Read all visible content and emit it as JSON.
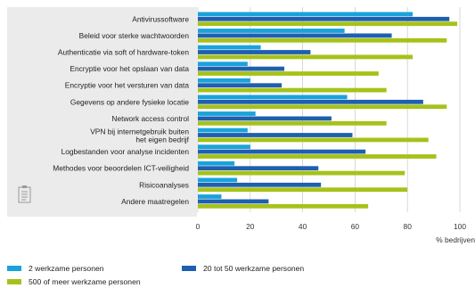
{
  "chart_data": {
    "type": "bar",
    "orientation": "horizontal",
    "categories": [
      "Antivirussoftware",
      "Beleid voor sterke wachtwoorden",
      "Authenticatie via soft of hardware-token",
      "Encryptie voor het opslaan van data",
      "Encryptie voor het versturen van data",
      "Gegevens op andere fysieke locatie",
      "Network access control",
      "VPN bij internetgebruik buiten het eigen bedrijf",
      "Logbestanden voor analyse incidenten",
      "Methodes voor beoordelen ICT-veiligheid",
      "Risicoanalyses",
      "Andere maatregelen"
    ],
    "series": [
      {
        "name": "2 werkzame personen",
        "color": "#1aa3d9",
        "values": [
          82,
          56,
          24,
          19,
          20,
          57,
          22,
          19,
          20,
          14,
          15,
          9
        ]
      },
      {
        "name": "20 tot 50 werkzame personen",
        "color": "#1f5fb0",
        "values": [
          96,
          74,
          43,
          33,
          32,
          86,
          51,
          59,
          64,
          46,
          47,
          27
        ]
      },
      {
        "name": "500 of meer werkzame personen",
        "color": "#a6c21a",
        "values": [
          99,
          95,
          82,
          69,
          72,
          95,
          72,
          88,
          91,
          79,
          80,
          65
        ]
      }
    ],
    "xlim": [
      0,
      100
    ],
    "xticks": [
      0,
      20,
      40,
      60,
      80,
      100
    ],
    "xlabel": "% bedrijven",
    "grid": true,
    "legend_position": "bottom"
  },
  "icons": {
    "corner_icon": "document-icon"
  }
}
